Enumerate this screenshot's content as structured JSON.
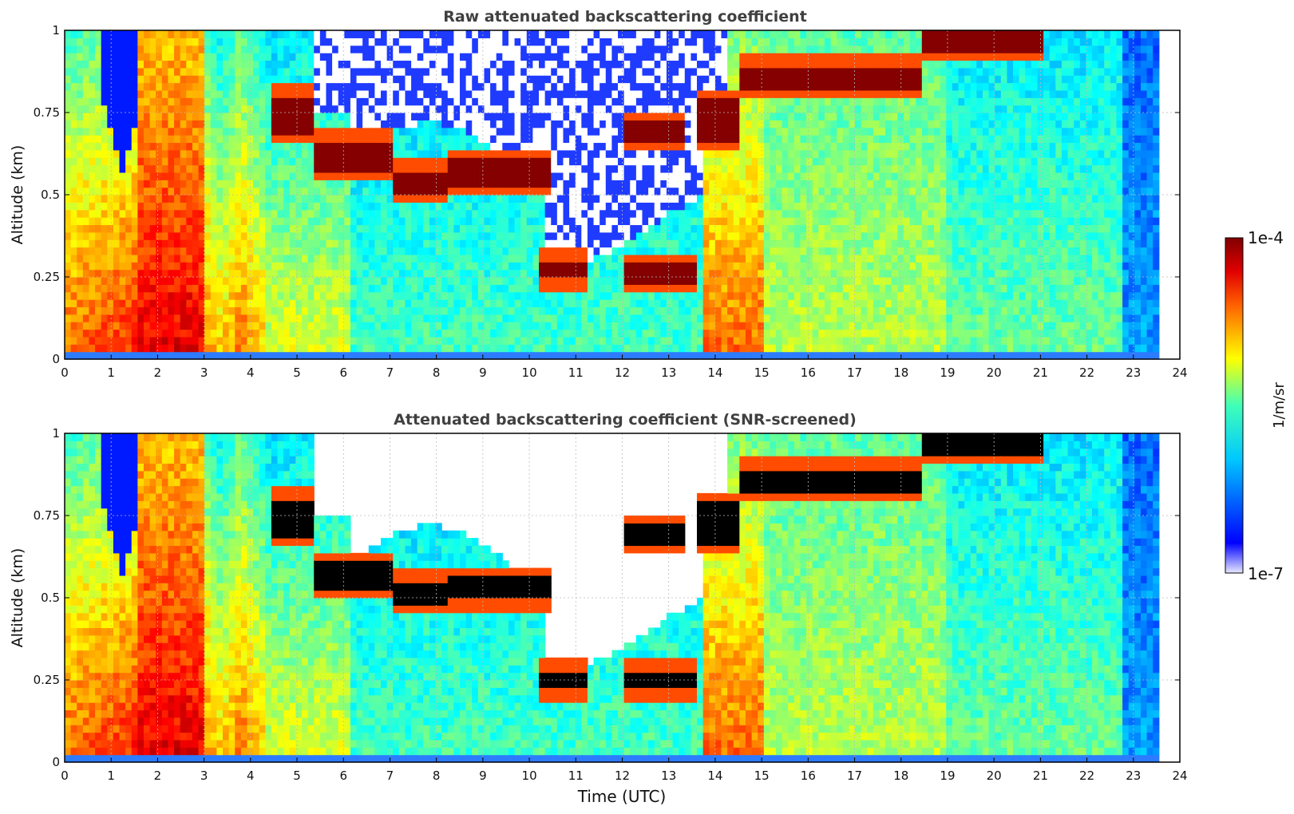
{
  "chart_data": [
    {
      "type": "heatmap",
      "title": "Raw attenuated backscattering coefficient",
      "xlabel": "",
      "ylabel": "Altitude (km)",
      "xlim": [
        0,
        24
      ],
      "ylim": [
        0,
        1
      ],
      "x_ticks": [
        "0",
        "1",
        "2",
        "3",
        "4",
        "5",
        "6",
        "7",
        "8",
        "9",
        "10",
        "11",
        "12",
        "13",
        "14",
        "15",
        "16",
        "17",
        "18",
        "19",
        "20",
        "21",
        "22",
        "23",
        "24"
      ],
      "y_ticks": [
        "0",
        "0.25",
        "0.5",
        "0.75",
        "1"
      ],
      "grid": true,
      "screened": false,
      "data_end_time": 23.55,
      "layers": [
        {
          "t_start": 4.4,
          "t_end": 5.4,
          "alt": 0.74,
          "thick": 0.12
        },
        {
          "t_start": 5.4,
          "t_end": 7.0,
          "alt": 0.62,
          "thick": 0.09
        },
        {
          "t_start": 7.0,
          "t_end": 8.2,
          "alt": 0.54,
          "thick": 0.07
        },
        {
          "t_start": 8.2,
          "t_end": 10.5,
          "alt": 0.57,
          "thick": 0.08
        },
        {
          "t_start": 10.2,
          "t_end": 11.2,
          "alt": 0.27,
          "thick": 0.06
        },
        {
          "t_start": 12.0,
          "t_end": 13.6,
          "alt": 0.26,
          "thick": 0.06
        },
        {
          "t_start": 12.0,
          "t_end": 13.3,
          "alt": 0.7,
          "thick": 0.06
        },
        {
          "t_start": 13.6,
          "t_end": 14.5,
          "alt": 0.73,
          "thick": 0.12
        },
        {
          "t_start": 14.5,
          "t_end": 18.5,
          "alt": 0.86,
          "thick": 0.07
        },
        {
          "t_start": 18.5,
          "t_end": 21.0,
          "alt": 0.97,
          "thick": 0.06
        }
      ]
    },
    {
      "type": "heatmap",
      "title": "Attenuated backscattering coefficient (SNR-screened)",
      "xlabel": "Time (UTC)",
      "ylabel": "Altitude (km)",
      "xlim": [
        0,
        24
      ],
      "ylim": [
        0,
        1
      ],
      "x_ticks": [
        "0",
        "1",
        "2",
        "3",
        "4",
        "5",
        "6",
        "7",
        "8",
        "9",
        "10",
        "11",
        "12",
        "13",
        "14",
        "15",
        "16",
        "17",
        "18",
        "19",
        "20",
        "21",
        "22",
        "23",
        "24"
      ],
      "y_ticks": [
        "0",
        "0.25",
        "0.5",
        "0.75",
        "1"
      ],
      "grid": true,
      "screened": true,
      "data_end_time": 23.55,
      "layers": [
        {
          "t_start": 4.4,
          "t_end": 5.4,
          "alt": 0.74,
          "thick": 0.12
        },
        {
          "t_start": 5.4,
          "t_end": 7.0,
          "alt": 0.57,
          "thick": 0.09
        },
        {
          "t_start": 7.0,
          "t_end": 8.2,
          "alt": 0.52,
          "thick": 0.07
        },
        {
          "t_start": 8.2,
          "t_end": 10.5,
          "alt": 0.53,
          "thick": 0.08
        },
        {
          "t_start": 10.2,
          "t_end": 11.2,
          "alt": 0.25,
          "thick": 0.06
        },
        {
          "t_start": 12.0,
          "t_end": 13.6,
          "alt": 0.25,
          "thick": 0.06
        },
        {
          "t_start": 12.0,
          "t_end": 13.3,
          "alt": 0.7,
          "thick": 0.06
        },
        {
          "t_start": 13.6,
          "t_end": 14.5,
          "alt": 0.73,
          "thick": 0.12
        },
        {
          "t_start": 14.5,
          "t_end": 18.5,
          "alt": 0.86,
          "thick": 0.07
        },
        {
          "t_start": 18.5,
          "t_end": 21.0,
          "alt": 0.97,
          "thick": 0.06
        }
      ]
    }
  ],
  "colorbar": {
    "label": "1/m/sr",
    "min_label": "1e-7",
    "max_label": "1e-4",
    "colormap": "jet",
    "scale": "log"
  }
}
